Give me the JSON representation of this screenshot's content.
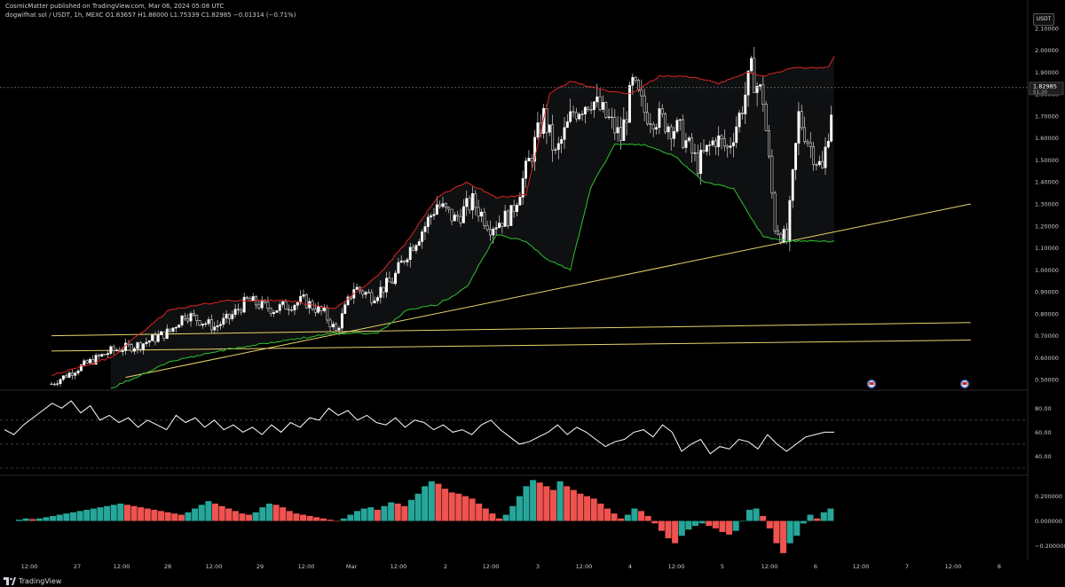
{
  "header": {
    "published": "CosmicMatter published on TradingView.com, Mar 06, 2024 05:08 UTC",
    "symbol": "dogwifhat sol / USDT, 1h, MEXC",
    "ohlc": "O1.83657 H1.88000 L1.75339 C1.82985 −0.01314 (−0.71%)"
  },
  "currency_badge": "USDT",
  "footer": {
    "brand": "TradingView",
    "logo_icon": "tradingview-logo-icon"
  },
  "colors": {
    "background": "#000000",
    "candle": "#ffffff",
    "upper_band": "#e02424",
    "lower_band": "#2ec42e",
    "trendline": "#e8d46a",
    "rsi": "#ffffff",
    "hist_up": "#26a69a",
    "hist_down": "#ef5350",
    "grid": "#1a1a1a"
  },
  "chart_data": [
    {
      "type": "candlestick",
      "pair": "dogwifhat sol / USDT",
      "interval": "1h",
      "exchange": "MEXC",
      "y_axis_ticks": [
        "2.10000",
        "2.00000",
        "1.90000",
        "1.80000",
        "1.70000",
        "1.60000",
        "1.50000",
        "1.40000",
        "1.30000",
        "1.20000",
        "1.10000",
        "1.00000",
        "0.90000",
        "0.80000",
        "0.70000",
        "0.60000",
        "0.50000"
      ],
      "ylim": [
        0.46,
        2.14
      ],
      "last_price": "1.82985",
      "countdown": "51:20",
      "x_axis_ticks": [
        "12:00",
        "27",
        "12:00",
        "28",
        "12:00",
        "29",
        "12:00",
        "Mar",
        "12:00",
        "2",
        "12:00",
        "3",
        "12:00",
        "4",
        "12:00",
        "5",
        "12:00",
        "6",
        "12:00",
        "7",
        "12:00",
        "8"
      ],
      "close_path": [
        [
          0,
          0.48
        ],
        [
          10,
          0.56
        ],
        [
          20,
          0.63
        ],
        [
          30,
          0.66
        ],
        [
          40,
          0.72
        ],
        [
          45,
          0.8
        ],
        [
          55,
          0.74
        ],
        [
          60,
          0.78
        ],
        [
          66,
          0.86
        ],
        [
          75,
          0.82
        ],
        [
          85,
          0.86
        ],
        [
          92,
          0.8
        ],
        [
          96,
          0.72
        ],
        [
          102,
          0.92
        ],
        [
          108,
          0.88
        ],
        [
          115,
          0.95
        ],
        [
          120,
          1.08
        ],
        [
          126,
          1.2
        ],
        [
          130,
          1.3
        ],
        [
          136,
          1.23
        ],
        [
          142,
          1.31
        ],
        [
          148,
          1.2
        ],
        [
          155,
          1.25
        ],
        [
          160,
          1.45
        ],
        [
          166,
          1.7
        ],
        [
          170,
          1.52
        ],
        [
          176,
          1.72
        ],
        [
          182,
          1.78
        ],
        [
          188,
          1.68
        ],
        [
          192,
          1.6
        ],
        [
          196,
          1.84
        ],
        [
          200,
          1.72
        ],
        [
          206,
          1.68
        ],
        [
          212,
          1.63
        ],
        [
          218,
          1.48
        ],
        [
          224,
          1.6
        ],
        [
          228,
          1.55
        ],
        [
          232,
          1.7
        ],
        [
          236,
          1.9
        ],
        [
          240,
          1.78
        ],
        [
          244,
          1.2
        ],
        [
          248,
          1.13
        ],
        [
          252,
          1.7
        ],
        [
          256,
          1.56
        ],
        [
          260,
          1.45
        ],
        [
          264,
          1.83
        ]
      ],
      "candle_count": 264,
      "bands": {
        "upper": [
          [
            0,
            0.52
          ],
          [
            20,
            0.6
          ],
          [
            40,
            0.82
          ],
          [
            60,
            0.86
          ],
          [
            80,
            0.86
          ],
          [
            95,
            0.82
          ],
          [
            110,
            0.97
          ],
          [
            120,
            1.13
          ],
          [
            130,
            1.33
          ],
          [
            140,
            1.4
          ],
          [
            150,
            1.33
          ],
          [
            160,
            1.34
          ],
          [
            168,
            1.8
          ],
          [
            175,
            1.86
          ],
          [
            185,
            1.82
          ],
          [
            195,
            1.8
          ],
          [
            205,
            1.88
          ],
          [
            215,
            1.88
          ],
          [
            225,
            1.85
          ],
          [
            235,
            1.9
          ],
          [
            240,
            1.88
          ],
          [
            250,
            1.92
          ],
          [
            262,
            1.92
          ],
          [
            264,
            1.97
          ]
        ],
        "lower": [
          [
            20,
            0.46
          ],
          [
            40,
            0.58
          ],
          [
            60,
            0.64
          ],
          [
            80,
            0.68
          ],
          [
            95,
            0.71
          ],
          [
            110,
            0.71
          ],
          [
            120,
            0.82
          ],
          [
            130,
            0.84
          ],
          [
            140,
            0.92
          ],
          [
            150,
            1.16
          ],
          [
            160,
            1.13
          ],
          [
            168,
            1.04
          ],
          [
            175,
            1.0
          ],
          [
            182,
            1.38
          ],
          [
            190,
            1.57
          ],
          [
            200,
            1.57
          ],
          [
            210,
            1.52
          ],
          [
            220,
            1.4
          ],
          [
            230,
            1.37
          ],
          [
            240,
            1.15
          ],
          [
            248,
            1.13
          ],
          [
            256,
            1.13
          ],
          [
            264,
            1.13
          ]
        ]
      },
      "trendlines": [
        {
          "from": [
            0,
            0.7
          ],
          "to": [
            310,
            0.76
          ]
        },
        {
          "from": [
            0,
            0.63
          ],
          "to": [
            310,
            0.68
          ]
        },
        {
          "from": [
            25,
            0.51
          ],
          "to": [
            310,
            1.3
          ]
        }
      ]
    },
    {
      "type": "line",
      "name": "RSI",
      "y_axis_ticks": [
        "80.00",
        "60.00",
        "40.00"
      ],
      "ylim": [
        30,
        92
      ],
      "dashed_levels": [
        70,
        50,
        30
      ],
      "values": [
        62,
        58,
        66,
        72,
        78,
        84,
        80,
        86,
        76,
        82,
        70,
        74,
        68,
        72,
        64,
        70,
        66,
        62,
        74,
        68,
        72,
        64,
        70,
        62,
        66,
        60,
        64,
        58,
        66,
        60,
        68,
        64,
        72,
        70,
        80,
        74,
        78,
        70,
        74,
        68,
        66,
        72,
        64,
        70,
        68,
        62,
        66,
        60,
        62,
        58,
        66,
        70,
        62,
        56,
        50,
        52,
        56,
        60,
        66,
        58,
        64,
        60,
        54,
        48,
        52,
        54,
        60,
        62,
        56,
        66,
        60,
        44,
        50,
        54,
        42,
        48,
        46,
        54,
        52,
        46,
        58,
        50,
        44,
        50,
        56,
        58,
        60,
        60
      ]
    },
    {
      "type": "bar",
      "name": "MACD histogram",
      "y_axis_ticks": [
        "0.200000",
        "0.000000",
        "−0.200000"
      ],
      "ylim": [
        -0.29,
        0.34
      ],
      "values": [
        0.01,
        0.02,
        0.015,
        0.02,
        0.03,
        0.04,
        0.05,
        0.06,
        0.07,
        0.08,
        0.09,
        0.1,
        0.11,
        0.12,
        0.13,
        0.14,
        0.13,
        0.12,
        0.11,
        0.1,
        0.09,
        0.08,
        0.07,
        0.06,
        0.05,
        0.07,
        0.1,
        0.13,
        0.16,
        0.14,
        0.12,
        0.1,
        0.08,
        0.06,
        0.05,
        0.07,
        0.11,
        0.14,
        0.13,
        0.11,
        0.08,
        0.06,
        0.05,
        0.04,
        0.03,
        0.02,
        0.01,
        0.0,
        0.02,
        0.05,
        0.08,
        0.1,
        0.11,
        0.09,
        0.12,
        0.15,
        0.14,
        0.12,
        0.17,
        0.22,
        0.28,
        0.32,
        0.3,
        0.26,
        0.23,
        0.22,
        0.2,
        0.18,
        0.14,
        0.1,
        0.06,
        0.02,
        0.05,
        0.12,
        0.2,
        0.28,
        0.33,
        0.31,
        0.28,
        0.25,
        0.32,
        0.28,
        0.25,
        0.22,
        0.2,
        0.18,
        0.14,
        0.1,
        0.06,
        0.02,
        0.05,
        0.1,
        0.08,
        0.04,
        -0.02,
        -0.08,
        -0.14,
        -0.18,
        -0.12,
        -0.07,
        -0.04,
        -0.02,
        -0.04,
        -0.06,
        -0.09,
        -0.11,
        -0.08,
        0.0,
        0.09,
        0.1,
        0.04,
        -0.06,
        -0.18,
        -0.26,
        -0.18,
        -0.12,
        -0.02,
        0.05,
        0.02,
        0.07,
        0.1
      ],
      "colors": [
        "u",
        "u",
        "d",
        "u",
        "u",
        "u",
        "u",
        "u",
        "u",
        "u",
        "u",
        "u",
        "u",
        "u",
        "u",
        "u",
        "d",
        "d",
        "d",
        "d",
        "d",
        "d",
        "d",
        "d",
        "d",
        "u",
        "u",
        "u",
        "u",
        "d",
        "d",
        "d",
        "d",
        "d",
        "d",
        "u",
        "u",
        "u",
        "d",
        "d",
        "d",
        "d",
        "d",
        "d",
        "d",
        "d",
        "d",
        "d",
        "u",
        "u",
        "u",
        "u",
        "u",
        "d",
        "u",
        "u",
        "d",
        "d",
        "u",
        "u",
        "u",
        "u",
        "d",
        "d",
        "d",
        "d",
        "d",
        "d",
        "d",
        "d",
        "d",
        "d",
        "u",
        "u",
        "u",
        "u",
        "u",
        "d",
        "d",
        "d",
        "u",
        "d",
        "d",
        "d",
        "d",
        "d",
        "d",
        "d",
        "d",
        "d",
        "u",
        "u",
        "d",
        "d",
        "d",
        "d",
        "d",
        "d",
        "u",
        "u",
        "u",
        "u",
        "d",
        "d",
        "d",
        "d",
        "u",
        "u",
        "u",
        "u",
        "d",
        "d",
        "d",
        "d",
        "u",
        "u",
        "u",
        "u",
        "d",
        "u",
        "u"
      ]
    }
  ]
}
